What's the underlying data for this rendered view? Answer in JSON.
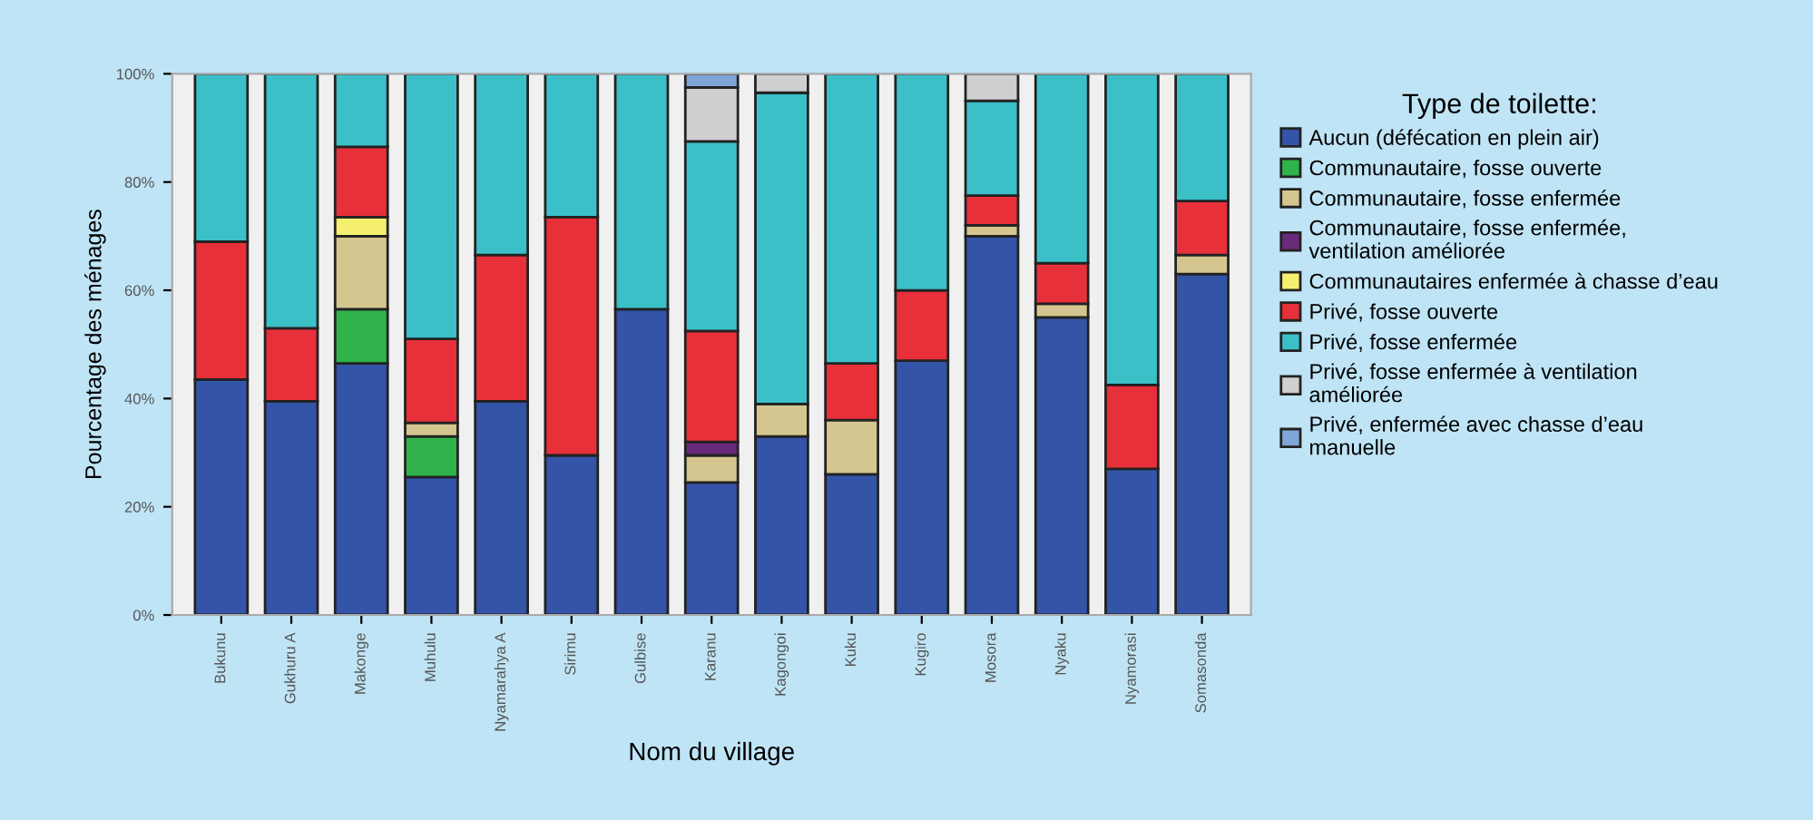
{
  "chart_data": {
    "type": "bar",
    "stacked": true,
    "xlabel": "Nom du village",
    "ylabel": "Pourcentage des ménages",
    "legend_title": "Type de toilette:",
    "legend": "right",
    "grid": false,
    "categories": [
      "Bukunu",
      "Gukhuru A",
      "Makonge",
      "Muhulu",
      "Nyamarahya A",
      "Sirimu",
      "Gulbise",
      "Karanu",
      "Kagongoi",
      "Kuku",
      "Kugiro",
      "Mosora",
      "Nyaku",
      "Nyamorasi",
      "Somasonda"
    ],
    "ylim": [
      0,
      100
    ],
    "yticks": [
      {
        "value": 0,
        "label": "0%"
      },
      {
        "value": 20,
        "label": "20%"
      },
      {
        "value": 40,
        "label": "40%"
      },
      {
        "value": 60,
        "label": "60%"
      },
      {
        "value": 80,
        "label": "80%"
      },
      {
        "value": 100,
        "label": "100%"
      }
    ],
    "series": [
      {
        "name": "Aucun (défécation en plein air)",
        "color": "#3454a8",
        "values": [
          43.5,
          39.5,
          46.5,
          25.5,
          39.5,
          29.5,
          56.5,
          24.5,
          33,
          26,
          47,
          70,
          55,
          27,
          63
        ]
      },
      {
        "name": "Communautaire, fosse ouverte",
        "color": "#2fb34a",
        "values": [
          null,
          null,
          10,
          7.5,
          null,
          null,
          null,
          null,
          null,
          null,
          null,
          null,
          null,
          null,
          null
        ]
      },
      {
        "name": "Communautaire, fosse enfermée",
        "color": "#d4c68e",
        "values": [
          null,
          null,
          13.5,
          2.5,
          null,
          null,
          null,
          5,
          6,
          10,
          null,
          2,
          2.5,
          null,
          3.5
        ]
      },
      {
        "name": "Communautaire, fosse enfermée, ventilation améliorée",
        "color": "#6a2a7a",
        "values": [
          null,
          null,
          null,
          null,
          null,
          null,
          null,
          2.5,
          null,
          null,
          null,
          null,
          null,
          null,
          null
        ]
      },
      {
        "name": "Communautaires enfermée à chasse d’eau",
        "color": "#f5ef70",
        "values": [
          null,
          null,
          3.5,
          null,
          null,
          null,
          null,
          null,
          null,
          null,
          null,
          null,
          null,
          null,
          null
        ]
      },
      {
        "name": "Privé, fosse ouverte",
        "color": "#e8303a",
        "values": [
          25.5,
          13.5,
          13,
          15.5,
          27,
          44,
          null,
          20.5,
          null,
          10.5,
          13,
          5.5,
          7.5,
          15.5,
          10
        ]
      },
      {
        "name": "Privé, fosse enfermée",
        "color": "#3bc0c8",
        "values": [
          31,
          47,
          13.5,
          49,
          33.5,
          26.5,
          43.5,
          35,
          57.5,
          53.5,
          40,
          17.5,
          35,
          57.5,
          23.5
        ]
      },
      {
        "name": "Privé, fosse enfermée à ventilation améliorée",
        "color": "#cfcfcf",
        "values": [
          null,
          null,
          null,
          null,
          null,
          null,
          null,
          10,
          3.5,
          null,
          null,
          5,
          null,
          null,
          null
        ]
      },
      {
        "name": "Privé, enfermée avec chasse d’eau manuelle",
        "color": "#7ea6d8",
        "values": [
          null,
          null,
          null,
          null,
          null,
          null,
          null,
          2.5,
          null,
          null,
          null,
          null,
          null,
          null,
          null
        ]
      }
    ]
  }
}
